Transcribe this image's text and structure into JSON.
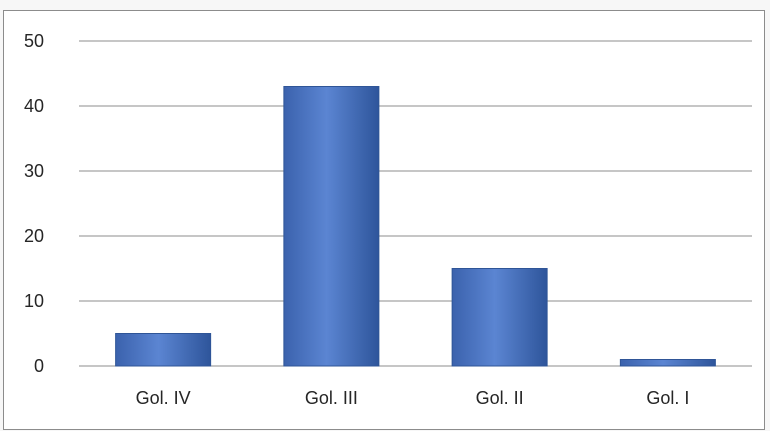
{
  "chart_data": {
    "type": "bar",
    "title": "",
    "xlabel": "",
    "ylabel": "",
    "categories": [
      "Gol. IV",
      "Gol. III",
      "Gol. II",
      "Gol. I"
    ],
    "values": [
      5,
      43,
      15,
      1
    ],
    "ylim": [
      0,
      50
    ],
    "yticks": [
      "0",
      "10",
      "20",
      "30",
      "40",
      "50"
    ],
    "grid": true,
    "legend": "none",
    "bar_color": "#4a74c2",
    "bar_color_dark": "#2f5597",
    "grid_color": "#8c8c8c"
  }
}
